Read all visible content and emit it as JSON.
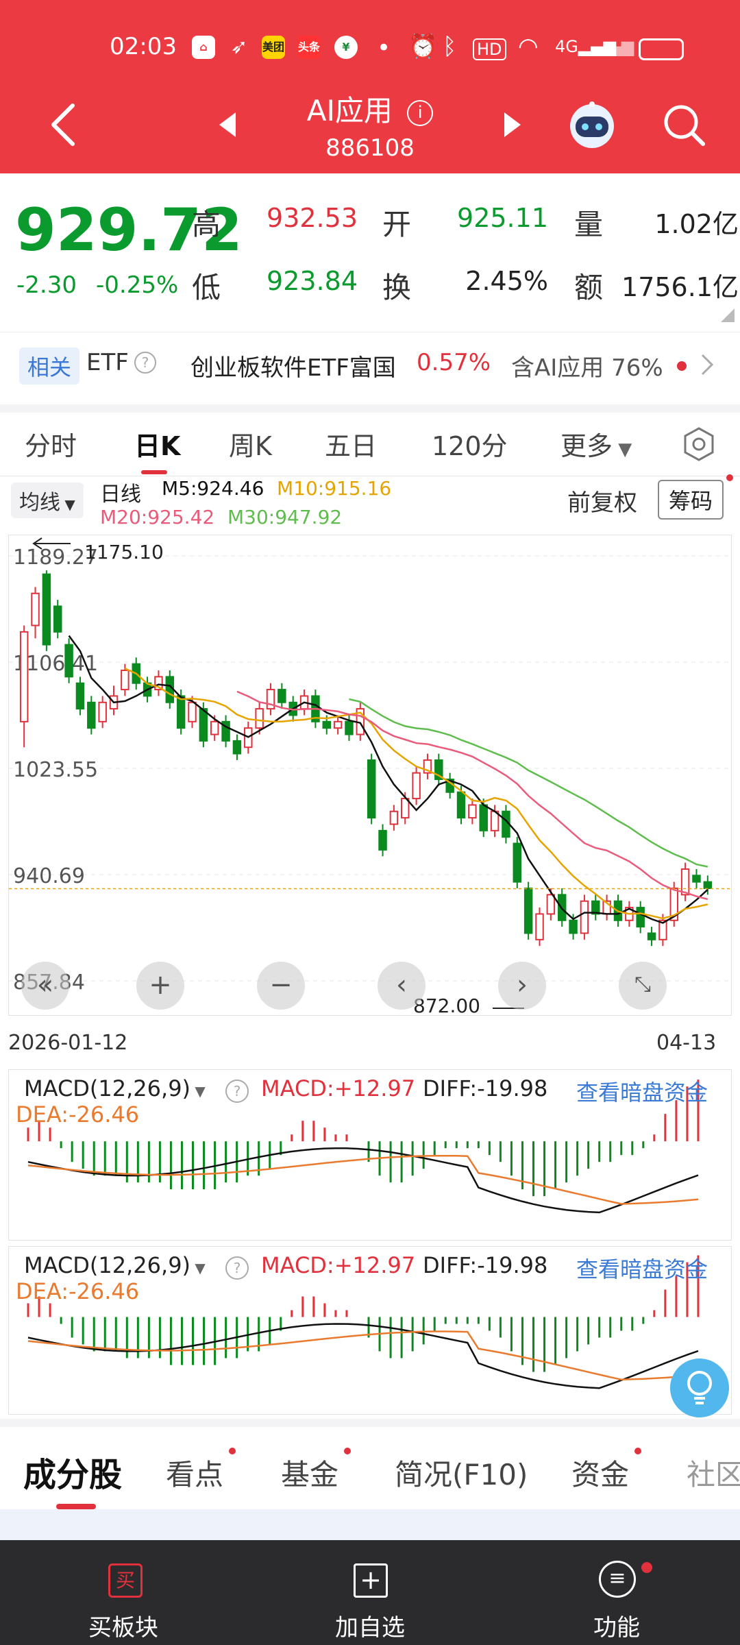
{
  "status_bar": {
    "time": "02:03",
    "app_icon_labels": [
      "美团",
      "头条"
    ]
  },
  "header": {
    "title": "AI应用",
    "code": "886108"
  },
  "quote": {
    "price": "929.72",
    "change": "-2.30",
    "change_pct": "-0.25%",
    "high_label": "高",
    "high": "932.53",
    "low_label": "低",
    "low": "923.84",
    "open_label": "开",
    "open": "925.11",
    "turnover_label": "换",
    "turnover": "2.45%",
    "volume_label": "量",
    "volume": "1.02亿",
    "amount_label": "额",
    "amount": "1756.1亿"
  },
  "etf": {
    "tag": "相关",
    "label": "ETF",
    "name": "创业板软件ETF富国",
    "change": "0.57%",
    "holding": "含AI应用 76%"
  },
  "period_tabs": [
    "分时",
    "日K",
    "周K",
    "五日",
    "120分",
    "更多"
  ],
  "chart_controls": {
    "ma_select": "均线",
    "daily": "日线",
    "m5": "M5:924.46",
    "m10": "M10:915.16",
    "m20": "M20:925.42",
    "m30": "M30:947.92",
    "adjust": "前复权",
    "chips": "筹码"
  },
  "chart_data": {
    "type": "candlestick",
    "y_ticks": [
      "1189.27",
      "1106.41",
      "1023.55",
      "940.69",
      "857.84"
    ],
    "ylim": [
      857.84,
      1189.27
    ],
    "max_label": "1175.10",
    "min_label": "872.00",
    "x_start": "2026-01-12",
    "x_end": "04-13",
    "candles": [
      [
        1060,
        1130,
        1040,
        1135
      ],
      [
        1135,
        1160,
        1125,
        1165
      ],
      [
        1175,
        1120,
        1115,
        1178
      ],
      [
        1150,
        1130,
        1125,
        1155
      ],
      [
        1120,
        1095,
        1090,
        1125
      ],
      [
        1090,
        1070,
        1065,
        1095
      ],
      [
        1075,
        1055,
        1050,
        1080
      ],
      [
        1060,
        1075,
        1055,
        1080
      ],
      [
        1070,
        1080,
        1065,
        1088
      ],
      [
        1085,
        1100,
        1080,
        1105
      ],
      [
        1105,
        1090,
        1085,
        1110
      ],
      [
        1090,
        1080,
        1075,
        1095
      ],
      [
        1085,
        1095,
        1080,
        1100
      ],
      [
        1095,
        1075,
        1070,
        1100
      ],
      [
        1080,
        1055,
        1050,
        1085
      ],
      [
        1060,
        1075,
        1055,
        1080
      ],
      [
        1070,
        1045,
        1040,
        1075
      ],
      [
        1050,
        1060,
        1045,
        1065
      ],
      [
        1060,
        1045,
        1040,
        1065
      ],
      [
        1045,
        1035,
        1030,
        1050
      ],
      [
        1040,
        1055,
        1035,
        1060
      ],
      [
        1055,
        1070,
        1050,
        1075
      ],
      [
        1070,
        1085,
        1065,
        1090
      ],
      [
        1085,
        1075,
        1070,
        1090
      ],
      [
        1075,
        1065,
        1060,
        1080
      ],
      [
        1070,
        1080,
        1065,
        1085
      ],
      [
        1080,
        1060,
        1055,
        1085
      ],
      [
        1060,
        1055,
        1050,
        1065
      ],
      [
        1055,
        1060,
        1050,
        1065
      ],
      [
        1060,
        1050,
        1045,
        1065
      ],
      [
        1050,
        1070,
        1045,
        1075
      ],
      [
        1030,
        985,
        980,
        1035
      ],
      [
        975,
        960,
        955,
        980
      ],
      [
        980,
        990,
        975,
        995
      ],
      [
        985,
        1000,
        980,
        1005
      ],
      [
        1000,
        1020,
        995,
        1025
      ],
      [
        1020,
        1030,
        1015,
        1035
      ],
      [
        1030,
        1015,
        1010,
        1035
      ],
      [
        1015,
        1005,
        1000,
        1020
      ],
      [
        1005,
        985,
        980,
        1010
      ],
      [
        985,
        995,
        980,
        1000
      ],
      [
        995,
        975,
        970,
        1000
      ],
      [
        975,
        990,
        970,
        995
      ],
      [
        990,
        970,
        965,
        995
      ],
      [
        965,
        935,
        930,
        970
      ],
      [
        930,
        895,
        890,
        935
      ],
      [
        890,
        910,
        885,
        915
      ],
      [
        910,
        925,
        905,
        930
      ],
      [
        925,
        905,
        900,
        930
      ],
      [
        905,
        895,
        890,
        910
      ],
      [
        895,
        920,
        890,
        925
      ],
      [
        920,
        910,
        905,
        925
      ],
      [
        910,
        920,
        905,
        925
      ],
      [
        920,
        905,
        900,
        925
      ],
      [
        905,
        915,
        900,
        920
      ],
      [
        915,
        900,
        895,
        920
      ],
      [
        895,
        890,
        885,
        900
      ],
      [
        890,
        905,
        885,
        910
      ],
      [
        905,
        930,
        900,
        935
      ],
      [
        925,
        945,
        920,
        950
      ],
      [
        940,
        935,
        930,
        945
      ],
      [
        935,
        930,
        925,
        940
      ]
    ],
    "macd_bars": [
      2,
      3,
      2,
      -1,
      -3,
      -4,
      -5,
      -5,
      -5,
      -6,
      -6,
      -6,
      -6,
      -7,
      -7,
      -7,
      -7,
      -7,
      -6,
      -6,
      -5,
      -5,
      -4,
      -2,
      1,
      3,
      3,
      2,
      1,
      1,
      0,
      -3,
      -5,
      -6,
      -6,
      -5,
      -4,
      -2,
      -1,
      -1,
      -1,
      -1,
      -2,
      -3,
      -5,
      -7,
      -8,
      -8,
      -7,
      -6,
      -5,
      -4,
      -3,
      -3,
      -2,
      -2,
      -1,
      1,
      4,
      6,
      8,
      9
    ],
    "macd_label": "MACD:+12.97",
    "diff_label": "DIFF:-19.98",
    "dea_label": "DEA:-26.46"
  },
  "macd_panels": [
    {
      "selector": "MACD(12,26,9)",
      "macd": "MACD:+12.97",
      "diff": "DIFF:-19.98",
      "dea": "DEA:-26.46",
      "link": "查看暗盘资金"
    },
    {
      "selector": "MACD(12,26,9)",
      "macd": "MACD:+12.97",
      "diff": "DIFF:-19.98",
      "dea": "DEA:-26.46",
      "link": "查看暗盘资金"
    }
  ],
  "bottom_tabs": [
    "成分股",
    "看点",
    "基金",
    "简况(F10)",
    "资金",
    "社区"
  ],
  "bottom_bar": {
    "buy": "买板块",
    "add": "加自选",
    "func": "功能"
  },
  "colors": {
    "up": "#e0313c",
    "down": "#0a8a1f",
    "header": "#ec3a42",
    "ma5": "#111111",
    "ma10": "#e6a400",
    "ma20": "#ea5a7a",
    "ma30": "#5fbd4e"
  }
}
